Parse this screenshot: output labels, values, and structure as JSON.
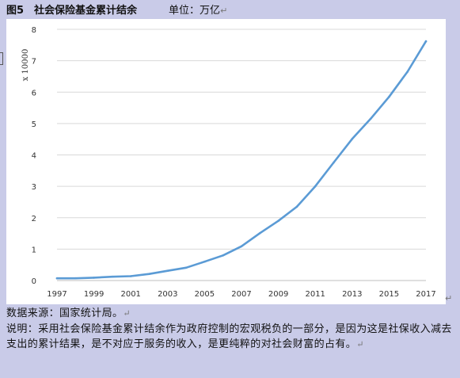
{
  "header": {
    "title": "图5　社会保险基金累计结余",
    "unit": "单位：万亿"
  },
  "chart_data": {
    "type": "line",
    "title": "图5　社会保险基金累计结余",
    "ylabel": "x 10000",
    "xlabel": "",
    "ylim": [
      0,
      8
    ],
    "yticks": [
      "0",
      "1",
      "2",
      "3",
      "4",
      "5",
      "6",
      "7",
      "8"
    ],
    "xlim": [
      1997,
      2017
    ],
    "xticks": [
      "1997",
      "1999",
      "2001",
      "2003",
      "2005",
      "2007",
      "2009",
      "2011",
      "2013",
      "2015",
      "2017"
    ],
    "grid": true,
    "line_color": "#5b9bd5",
    "series": [
      {
        "x": [
          1997,
          1998,
          1999,
          2000,
          2001,
          2002,
          2003,
          2004,
          2005,
          2006,
          2007,
          2008,
          2009,
          2010,
          2011,
          2012,
          2013,
          2014,
          2015,
          2016,
          2017
        ],
        "values": [
          0.07,
          0.07,
          0.09,
          0.12,
          0.14,
          0.21,
          0.31,
          0.41,
          0.6,
          0.8,
          1.09,
          1.51,
          1.9,
          2.35,
          3.0,
          3.76,
          4.51,
          5.15,
          5.85,
          6.65,
          7.62
        ]
      }
    ]
  },
  "footer": {
    "source": "数据来源：国家统计局。",
    "note": "说明：采用社会保险基金累计结余作为政府控制的宏观税负的一部分，是因为这是社保收入减去支出的累计结果，是不对应于服务的收入，是更纯粹的对社会财富的占有。"
  }
}
